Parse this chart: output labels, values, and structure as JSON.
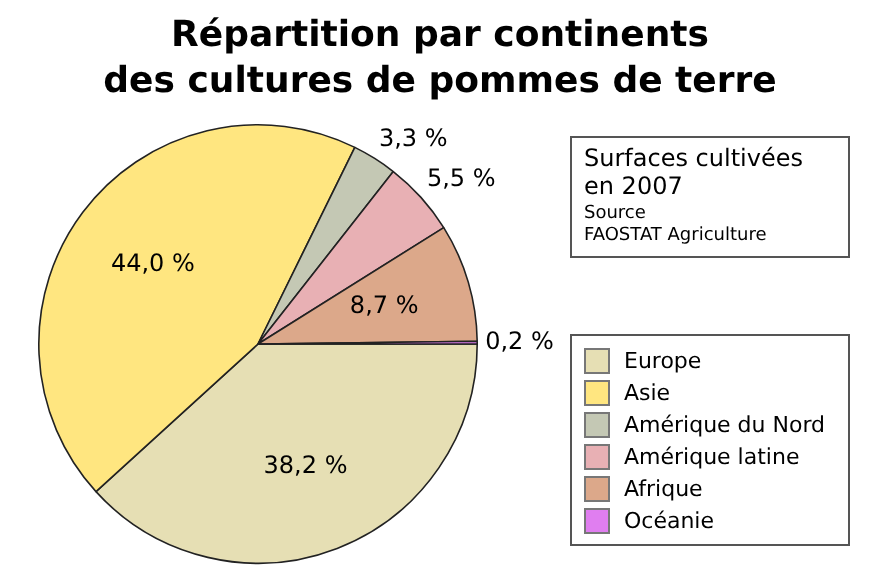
{
  "chart_data": {
    "type": "pie",
    "title": "Répartition par continents\ndes cultures de pommes de terre",
    "categories": [
      "Europe",
      "Asie",
      "Amérique du Nord",
      "Amérique latine",
      "Afrique",
      "Océanie"
    ],
    "values": [
      38.2,
      44.0,
      3.3,
      5.5,
      8.7,
      0.2
    ],
    "value_labels": [
      "38,2 %",
      "44,0 %",
      "3,3 %",
      "5,5 %",
      "8,7 %",
      "0,2 %"
    ],
    "colors": [
      "#e6dfb4",
      "#ffe680",
      "#c4c8b4",
      "#e8b0b4",
      "#dca88a",
      "#e07ef0"
    ],
    "legend": "right",
    "annotations": [
      "Surfaces cultivées en 2007",
      "Source",
      "FAOSTAT Agriculture"
    ]
  }
}
